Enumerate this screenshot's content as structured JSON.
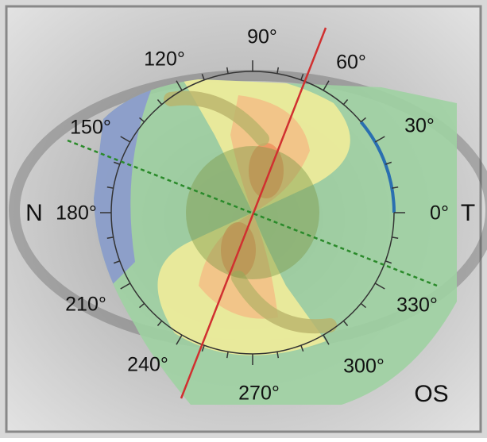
{
  "angle_labels": [
    "90°",
    "60°",
    "30°",
    "0°",
    "330°",
    "300°",
    "270°",
    "240°",
    "210°",
    "180°",
    "150°",
    "120°"
  ],
  "side_labels": {
    "nasal": "N",
    "temporal": "T"
  },
  "eye_label": "OS"
}
